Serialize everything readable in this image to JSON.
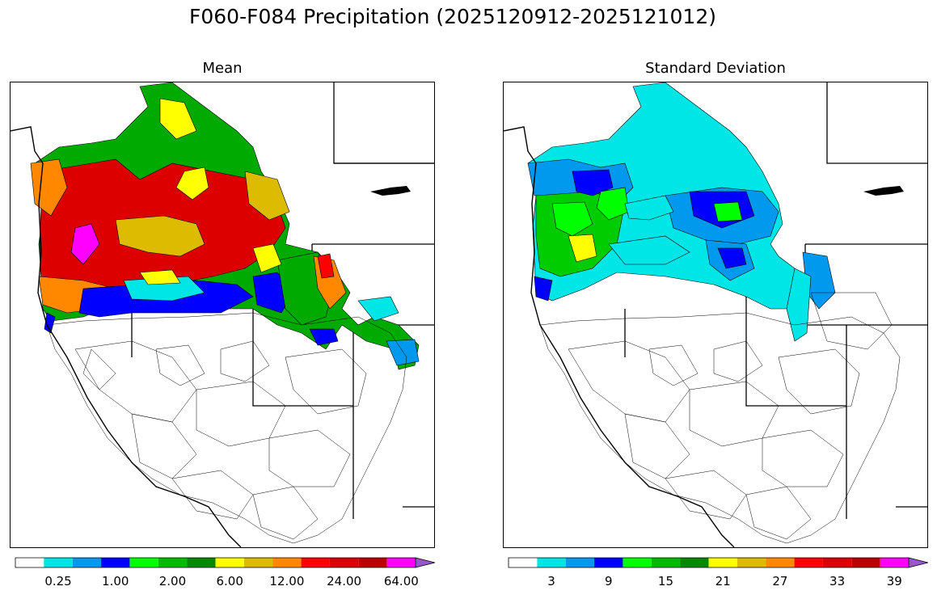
{
  "title": "F060-F084 Precipitation (2025120912-2025121012)",
  "panels": [
    {
      "title": "Mean",
      "colorbar": {
        "colors": [
          "#ffffff",
          "#00e5e5",
          "#0099ee",
          "#0000ff",
          "#00ff00",
          "#00bb00",
          "#008800",
          "#ffff00",
          "#ddbb00",
          "#ff8800",
          "#ff0000",
          "#dd0000",
          "#bb0000",
          "#ff00ff",
          "#9955cc"
        ],
        "tick_labels": [
          "0.25",
          "1.00",
          "2.00",
          "6.00",
          "12.00",
          "24.00",
          "64.00"
        ]
      }
    },
    {
      "title": "Standard Deviation",
      "colorbar": {
        "colors": [
          "#ffffff",
          "#00e5e5",
          "#0099ee",
          "#0000ff",
          "#00ff00",
          "#00bb00",
          "#008800",
          "#ffff00",
          "#ddbb00",
          "#ff8800",
          "#ff0000",
          "#dd0000",
          "#bb0000",
          "#ff00ff",
          "#9955cc"
        ],
        "tick_labels": [
          "3",
          "9",
          "15",
          "21",
          "27",
          "33",
          "39"
        ]
      }
    }
  ]
}
